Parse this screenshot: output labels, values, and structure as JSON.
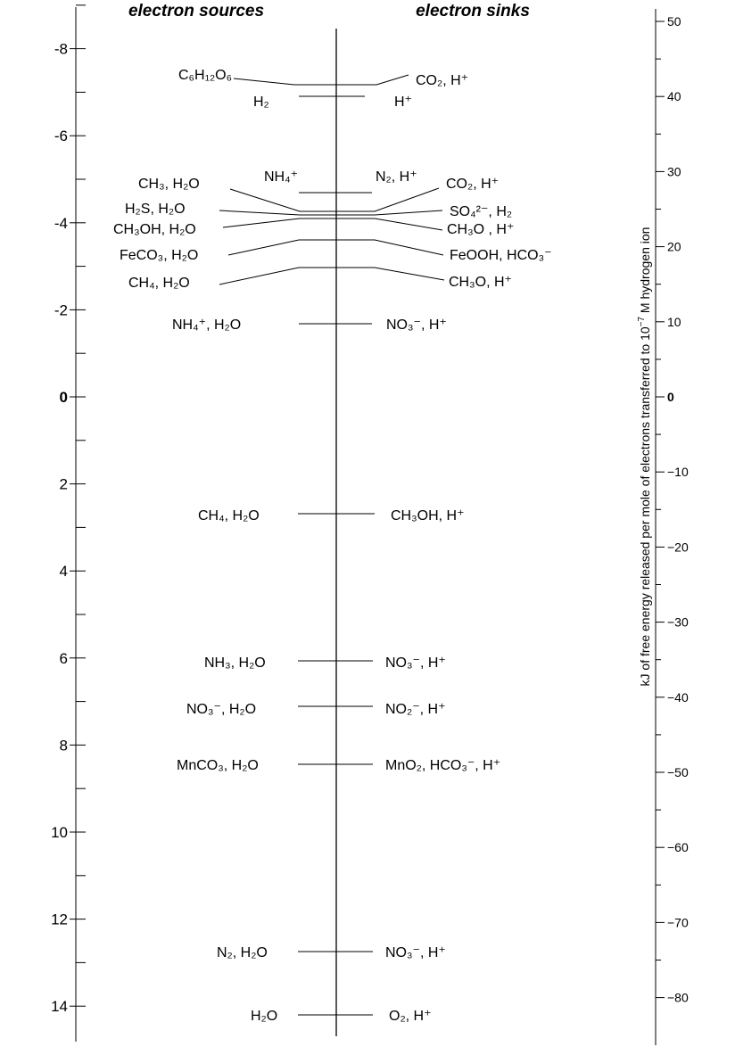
{
  "headers": {
    "left": "electron sources",
    "right": "electron sinks"
  },
  "left_axis": {
    "ticks": [
      {
        "value": -8,
        "label": "-8"
      },
      {
        "value": -6,
        "label": "-6"
      },
      {
        "value": -4,
        "label": "-4"
      },
      {
        "value": -2,
        "label": "-2"
      },
      {
        "value": 0,
        "label": "0",
        "bold": true
      },
      {
        "value": 2,
        "label": "2"
      },
      {
        "value": 4,
        "label": "4"
      },
      {
        "value": 6,
        "label": "6"
      },
      {
        "value": 8,
        "label": "8"
      },
      {
        "value": 10,
        "label": "10"
      },
      {
        "value": 12,
        "label": "12"
      },
      {
        "value": 14,
        "label": "14"
      }
    ],
    "range": [
      -9,
      14
    ]
  },
  "right_axis": {
    "label": "kJ of free energy released per mole of electrons transferred to 10^-7 M hydrogen ion",
    "label_parts": [
      "kJ of free energy released per mole of electrons transferred to 10",
      "−7",
      " M hydrogen ion"
    ],
    "ticks": [
      {
        "value": 50,
        "label": "50"
      },
      {
        "value": 40,
        "label": "40"
      },
      {
        "value": 30,
        "label": "30"
      },
      {
        "value": 20,
        "label": "20"
      },
      {
        "value": 10,
        "label": "10"
      },
      {
        "value": 0,
        "label": "0",
        "bold": true
      },
      {
        "value": -10,
        "label": "−10"
      },
      {
        "value": -20,
        "label": "−20"
      },
      {
        "value": -30,
        "label": "−30"
      },
      {
        "value": -40,
        "label": "−40"
      },
      {
        "value": -50,
        "label": "−50"
      },
      {
        "value": -60,
        "label": "−60"
      },
      {
        "value": -70,
        "label": "−70"
      },
      {
        "value": -80,
        "label": "−80"
      }
    ]
  },
  "couples": [
    {
      "source": "C₆H₁₂O₆",
      "sink": "CO₂, H⁺",
      "level": -7.37
    },
    {
      "source": "H₂",
      "sink": "H⁺",
      "level": -7.0
    },
    {
      "source": "NH₄⁺",
      "sink": "N₂, H⁺",
      "level": -4.87
    },
    {
      "source": "CH₃, H₂O",
      "sink": "CO₂, H⁺",
      "level": -4.36
    },
    {
      "source": "H₂S, H₂O",
      "sink": "SO₄²⁻, H₂",
      "level": -4.2
    },
    {
      "source": "CH₃OH, H₂O",
      "sink": "CH₃O , H⁺",
      "level": -4.1
    },
    {
      "source": "FeCO₃, H₂O",
      "sink": "FeOOH, HCO₃⁻",
      "level": -3.61
    },
    {
      "source": "CH₄, H₂O",
      "sink": "CH₃O, H⁺",
      "level": -3.0
    },
    {
      "source": "NH₄⁺, H₂O",
      "sink": "NO₃⁻, H⁺",
      "level": -1.7
    },
    {
      "source": "CH₄, H₂O",
      "sink": "CH₃OH, H⁺",
      "level": 2.7
    },
    {
      "source": "NH₃, H₂O",
      "sink": "NO₃⁻, H⁺",
      "level": 6.1
    },
    {
      "source": "NO₃⁻, H₂O",
      "sink": "NO₂⁻, H⁺",
      "level": 7.15
    },
    {
      "source": "MnCO₃, H₂O",
      "sink": "MnO₂, HCO₃⁻, H⁺",
      "level": 8.5
    },
    {
      "source": "N₂, H₂O",
      "sink": "NO₃⁻, H⁺",
      "level": 12.55
    },
    {
      "source": "H₂O",
      "sink": "O₂, H⁺",
      "level": 13.8
    }
  ]
}
